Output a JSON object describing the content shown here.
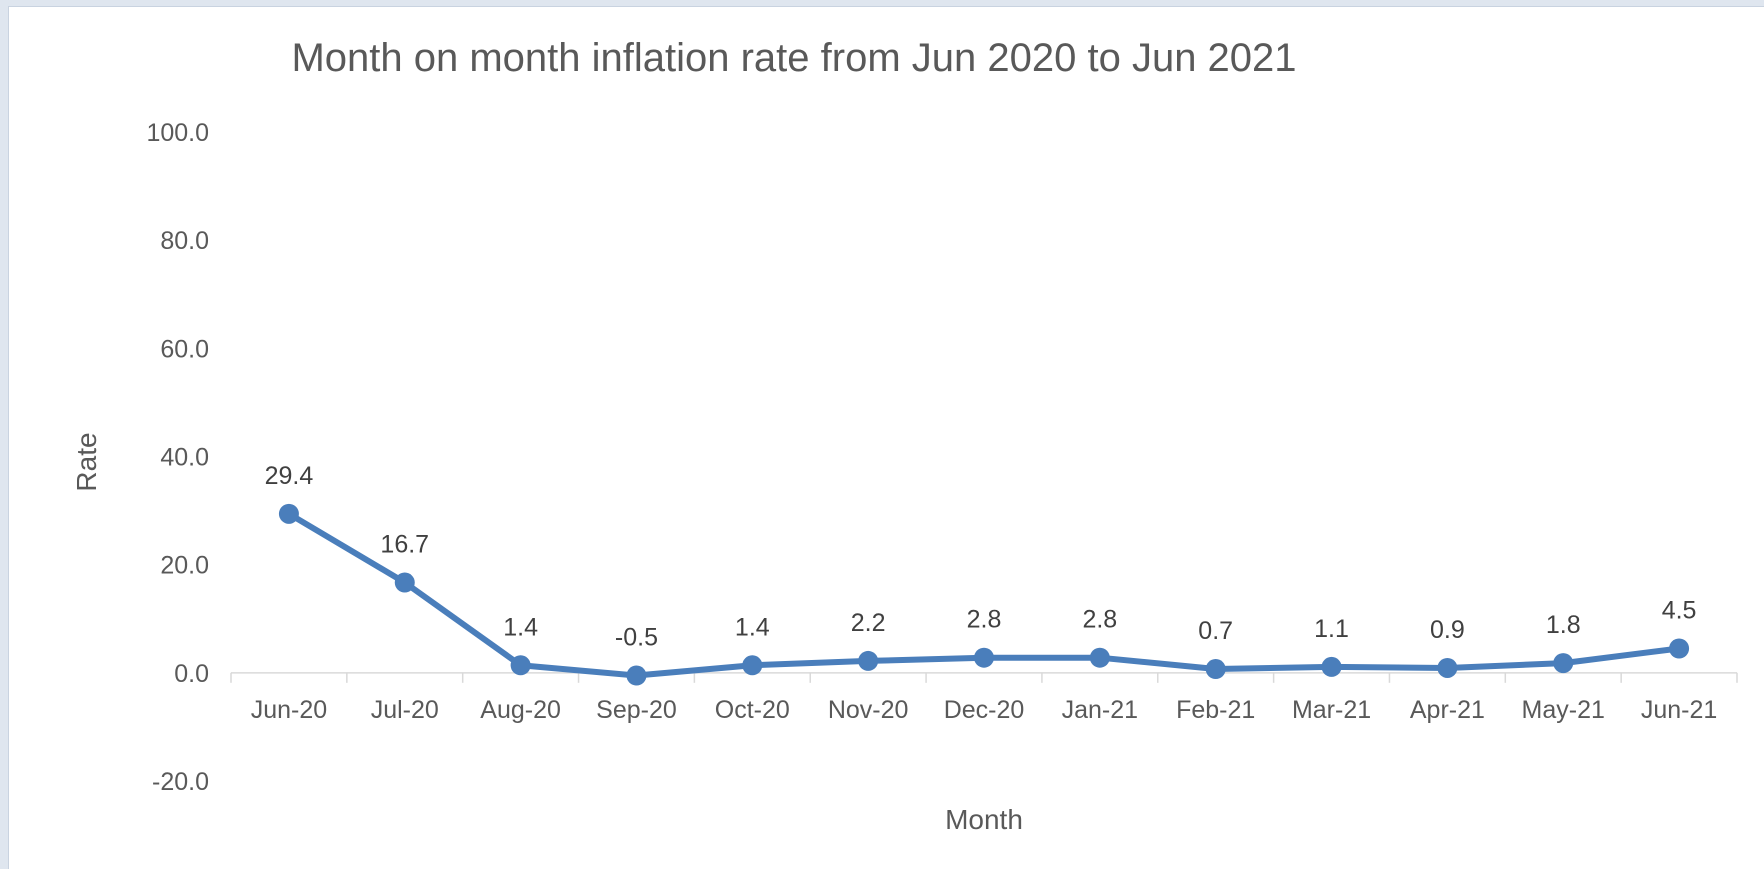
{
  "chart_data": {
    "type": "line",
    "title": "Month on month inflation rate from Jun 2020 to Jun 2021",
    "xlabel": "Month",
    "ylabel": "Rate",
    "ylim": [
      -20,
      100
    ],
    "yticks": [
      "100.0",
      "80.0",
      "60.0",
      "40.0",
      "20.0",
      "0.0",
      "-20.0"
    ],
    "ytick_values": [
      100,
      80,
      60,
      40,
      20,
      0,
      -20
    ],
    "categories": [
      "Jun-20",
      "Jul-20",
      "Aug-20",
      "Sep-20",
      "Oct-20",
      "Nov-20",
      "Dec-20",
      "Jan-21",
      "Feb-21",
      "Mar-21",
      "Apr-21",
      "May-21",
      "Jun-21"
    ],
    "series": [
      {
        "values": [
          29.4,
          16.7,
          1.4,
          -0.5,
          1.4,
          2.2,
          2.8,
          2.8,
          0.7,
          1.1,
          0.9,
          1.8,
          4.5
        ],
        "data_labels": [
          "29.4",
          "16.7",
          "1.4",
          "-0.5",
          "1.4",
          "2.2",
          "2.8",
          "2.8",
          "0.7",
          "1.1",
          "0.9",
          "1.8",
          "4.5"
        ],
        "color": "#4a7ebb"
      }
    ],
    "grid": false,
    "legend": "none"
  }
}
